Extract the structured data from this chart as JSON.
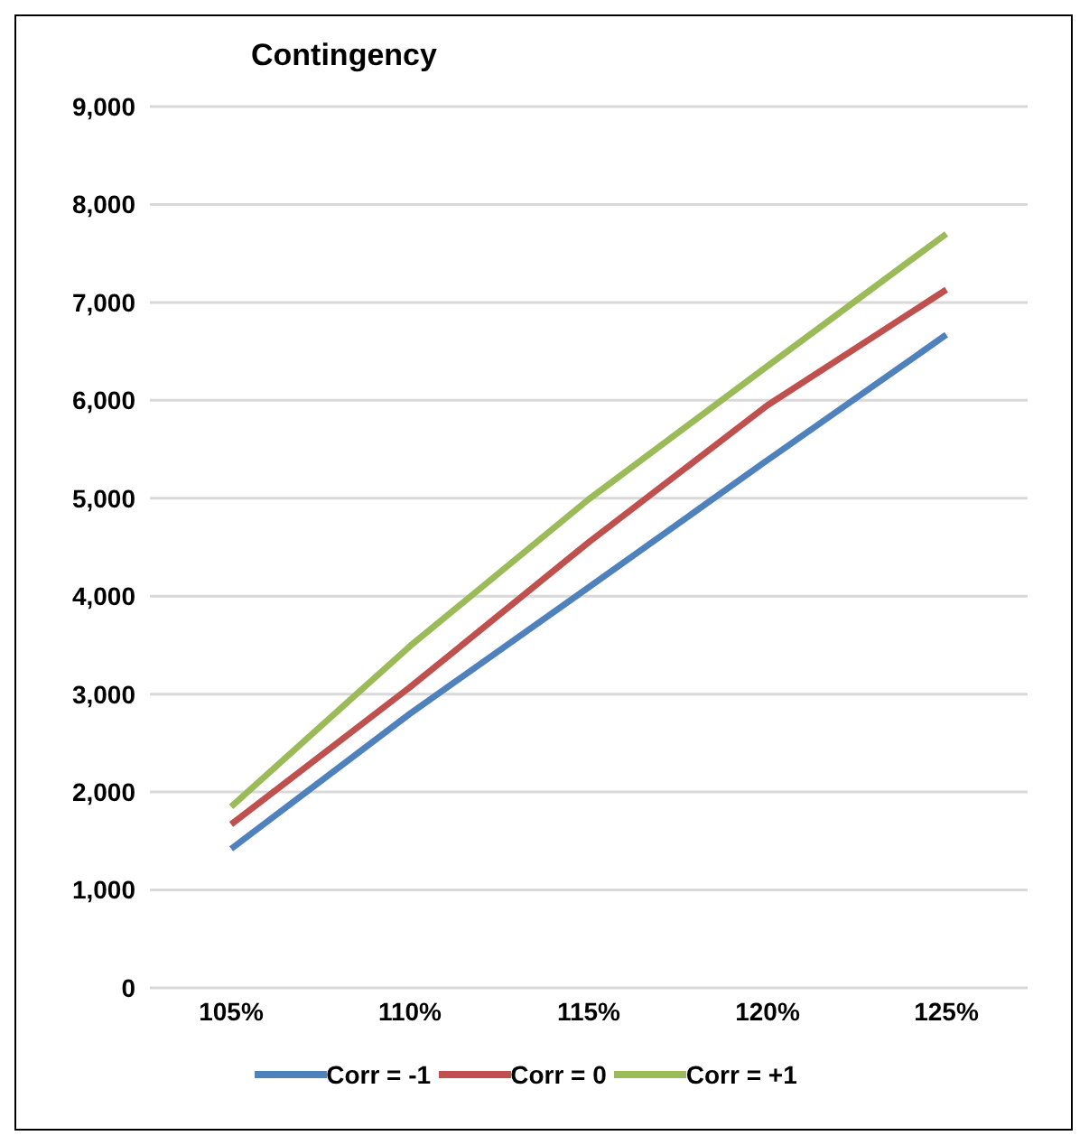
{
  "chart_data": {
    "type": "line",
    "title": "Contingency",
    "categories": [
      "105%",
      "110%",
      "115%",
      "120%",
      "125%"
    ],
    "series": [
      {
        "name": "Corr = -1",
        "color": "#4f81bd",
        "values": [
          1420,
          2800,
          4090,
          5390,
          6670
        ]
      },
      {
        "name": "Corr = 0",
        "color": "#c0504d",
        "values": [
          1670,
          3070,
          4550,
          5950,
          7130
        ]
      },
      {
        "name": "Corr = +1",
        "color": "#9bbb59",
        "values": [
          1850,
          3490,
          4990,
          6350,
          7700
        ]
      }
    ],
    "ylim": [
      0,
      9000
    ],
    "yticks": [
      0,
      {
        "value": 1000,
        "label": "1,000"
      },
      {
        "value": 2000,
        "label": "2,000"
      },
      {
        "value": 3000,
        "label": "3,000"
      },
      {
        "value": 4000,
        "label": "4,000"
      },
      {
        "value": 5000,
        "label": "5,000"
      },
      {
        "value": 6000,
        "label": "6,000"
      },
      {
        "value": 7000,
        "label": "7,000"
      },
      {
        "value": 8000,
        "label": "8,000"
      },
      {
        "value": 9000,
        "label": "9,000"
      }
    ],
    "grid": "y",
    "legend": "bottom",
    "marker": "none",
    "line_style": "solid"
  }
}
